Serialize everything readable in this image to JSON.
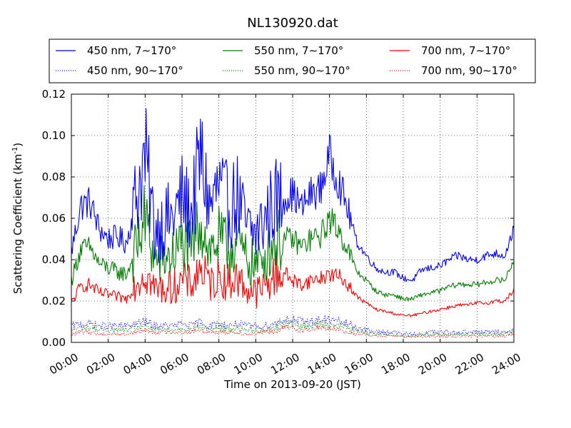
{
  "chart_data": {
    "type": "line",
    "title": "NL130920.dat",
    "xlabel": "Time on 2013-09-20 (JST)",
    "ylabel": "Scattering Coefficient (km",
    "ylabel_sup": "-1",
    "ylabel_end": ")",
    "xlim": [
      "00:00",
      "24:00"
    ],
    "ylim": [
      0,
      0.12
    ],
    "grid": true,
    "legend_position": "top",
    "x_ticks": [
      "00:00",
      "02:00",
      "04:00",
      "06:00",
      "08:00",
      "10:00",
      "12:00",
      "14:00",
      "16:00",
      "18:00",
      "20:00",
      "22:00",
      "24:00"
    ],
    "y_ticks": [
      "0.00",
      "0.02",
      "0.04",
      "0.06",
      "0.08",
      "0.10",
      "0.12"
    ],
    "hours": [
      0,
      0.5,
      1,
      1.5,
      2,
      2.5,
      3,
      3.5,
      4,
      4.5,
      5,
      5.5,
      6,
      6.5,
      7,
      7.5,
      8,
      8.5,
      9,
      9.5,
      10,
      10.5,
      11,
      11.5,
      12,
      12.5,
      13,
      13.5,
      14,
      14.5,
      15,
      15.5,
      16,
      16.5,
      17,
      17.5,
      18,
      18.5,
      19,
      19.5,
      20,
      20.5,
      21,
      21.5,
      22,
      22.5,
      23,
      23.5,
      24
    ],
    "series": [
      {
        "name": "450 nm, 7∼170°",
        "color": "#0000ff",
        "style": "solid",
        "values": [
          0.044,
          0.066,
          0.068,
          0.055,
          0.05,
          0.051,
          0.048,
          0.07,
          0.09,
          0.055,
          0.058,
          0.06,
          0.07,
          0.062,
          0.09,
          0.065,
          0.075,
          0.065,
          0.07,
          0.055,
          0.052,
          0.06,
          0.068,
          0.07,
          0.072,
          0.065,
          0.072,
          0.074,
          0.09,
          0.078,
          0.064,
          0.048,
          0.042,
          0.036,
          0.034,
          0.034,
          0.031,
          0.03,
          0.035,
          0.036,
          0.037,
          0.04,
          0.042,
          0.04,
          0.04,
          0.042,
          0.043,
          0.042,
          0.055
        ]
      },
      {
        "name": "550 nm, 7∼170°",
        "color": "#008000",
        "style": "solid",
        "values": [
          0.03,
          0.045,
          0.046,
          0.038,
          0.036,
          0.034,
          0.033,
          0.045,
          0.06,
          0.04,
          0.04,
          0.042,
          0.048,
          0.044,
          0.06,
          0.044,
          0.05,
          0.045,
          0.048,
          0.04,
          0.037,
          0.042,
          0.048,
          0.05,
          0.05,
          0.046,
          0.05,
          0.051,
          0.06,
          0.054,
          0.045,
          0.034,
          0.03,
          0.025,
          0.023,
          0.023,
          0.021,
          0.021,
          0.023,
          0.024,
          0.025,
          0.027,
          0.028,
          0.028,
          0.028,
          0.029,
          0.03,
          0.03,
          0.04
        ]
      },
      {
        "name": "700 nm, 7∼170°",
        "color": "#ff0000",
        "style": "solid",
        "values": [
          0.019,
          0.027,
          0.028,
          0.024,
          0.023,
          0.022,
          0.021,
          0.029,
          0.034,
          0.026,
          0.026,
          0.027,
          0.03,
          0.028,
          0.036,
          0.028,
          0.032,
          0.029,
          0.031,
          0.026,
          0.024,
          0.027,
          0.032,
          0.034,
          0.03,
          0.028,
          0.03,
          0.031,
          0.033,
          0.032,
          0.028,
          0.022,
          0.019,
          0.016,
          0.015,
          0.014,
          0.013,
          0.013,
          0.014,
          0.015,
          0.016,
          0.017,
          0.018,
          0.018,
          0.019,
          0.019,
          0.02,
          0.02,
          0.025
        ]
      },
      {
        "name": "450 nm, 90∼170°",
        "color": "#0000ff",
        "style": "dotted",
        "values": [
          0.008,
          0.009,
          0.009,
          0.008,
          0.008,
          0.008,
          0.008,
          0.009,
          0.01,
          0.008,
          0.008,
          0.008,
          0.009,
          0.008,
          0.01,
          0.008,
          0.009,
          0.008,
          0.009,
          0.008,
          0.008,
          0.008,
          0.009,
          0.011,
          0.011,
          0.01,
          0.01,
          0.011,
          0.011,
          0.01,
          0.009,
          0.007,
          0.006,
          0.005,
          0.005,
          0.005,
          0.004,
          0.004,
          0.004,
          0.005,
          0.005,
          0.005,
          0.005,
          0.005,
          0.005,
          0.005,
          0.005,
          0.005,
          0.006
        ]
      },
      {
        "name": "550 nm, 90∼170°",
        "color": "#008000",
        "style": "dotted",
        "values": [
          0.006,
          0.007,
          0.007,
          0.006,
          0.006,
          0.006,
          0.006,
          0.007,
          0.008,
          0.006,
          0.006,
          0.006,
          0.007,
          0.006,
          0.008,
          0.006,
          0.007,
          0.006,
          0.007,
          0.006,
          0.006,
          0.006,
          0.007,
          0.009,
          0.009,
          0.008,
          0.008,
          0.009,
          0.009,
          0.008,
          0.007,
          0.005,
          0.005,
          0.004,
          0.004,
          0.004,
          0.003,
          0.003,
          0.004,
          0.004,
          0.004,
          0.004,
          0.004,
          0.004,
          0.004,
          0.004,
          0.004,
          0.004,
          0.005
        ]
      },
      {
        "name": "700 nm, 90∼170°",
        "color": "#ff0000",
        "style": "dotted",
        "values": [
          0.004,
          0.005,
          0.005,
          0.004,
          0.004,
          0.004,
          0.004,
          0.005,
          0.006,
          0.005,
          0.005,
          0.005,
          0.005,
          0.005,
          0.006,
          0.005,
          0.005,
          0.005,
          0.005,
          0.004,
          0.004,
          0.005,
          0.005,
          0.007,
          0.007,
          0.006,
          0.006,
          0.007,
          0.007,
          0.006,
          0.005,
          0.004,
          0.004,
          0.003,
          0.003,
          0.003,
          0.003,
          0.003,
          0.003,
          0.003,
          0.003,
          0.003,
          0.003,
          0.003,
          0.003,
          0.003,
          0.003,
          0.003,
          0.004
        ]
      }
    ]
  }
}
